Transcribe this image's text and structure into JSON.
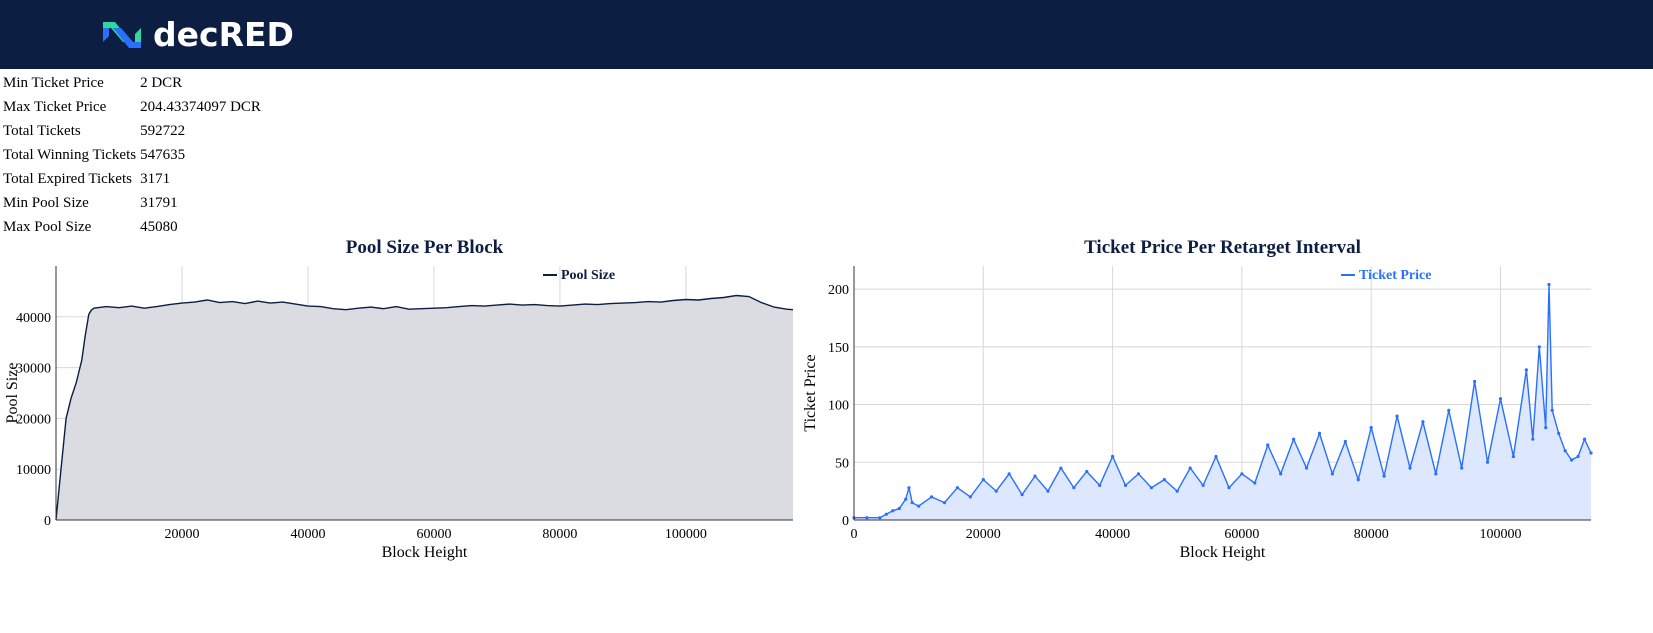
{
  "header": {
    "logo_text": "decRED",
    "colors": {
      "bar": "#0c1e42",
      "logo_blue": "#2970ff",
      "logo_teal": "#2ed6a1"
    }
  },
  "stats": [
    {
      "label": "Min Ticket Price",
      "value": "2 DCR"
    },
    {
      "label": "Max Ticket Price",
      "value": "204.43374097 DCR"
    },
    {
      "label": "Total Tickets",
      "value": "592722"
    },
    {
      "label": "Total Winning Tickets",
      "value": "547635"
    },
    {
      "label": "Total Expired Tickets",
      "value": "3171"
    },
    {
      "label": "Min Pool Size",
      "value": "31791"
    },
    {
      "label": "Max Pool Size",
      "value": "45080"
    }
  ],
  "chart_data": [
    {
      "type": "area",
      "title": "Pool Size Per Block",
      "xlabel": "Block Height",
      "ylabel": "Pool Size",
      "xlim": [
        0,
        117000
      ],
      "ylim": [
        0,
        50000
      ],
      "xticks": [
        20000,
        40000,
        60000,
        80000,
        100000
      ],
      "yticks": [
        0,
        10000,
        20000,
        30000,
        40000
      ],
      "grid": true,
      "legend": "top-right",
      "line_color": "#0c1e42",
      "fill_color": "#dadce2",
      "series": [
        {
          "name": "Pool Size",
          "x": [
            0,
            800,
            1600,
            2400,
            3200,
            4096,
            4600,
            5200,
            5600,
            6000,
            8000,
            10000,
            12000,
            14000,
            16000,
            18000,
            20000,
            22000,
            24000,
            26000,
            28000,
            30000,
            32000,
            34000,
            36000,
            38000,
            40000,
            42000,
            44000,
            46000,
            48000,
            50000,
            52000,
            54000,
            56000,
            58000,
            60000,
            62000,
            64000,
            66000,
            68000,
            70000,
            72000,
            74000,
            76000,
            78000,
            80000,
            82000,
            84000,
            86000,
            88000,
            90000,
            92000,
            94000,
            96000,
            98000,
            100000,
            102000,
            104000,
            106000,
            108000,
            110000,
            112000,
            114000,
            116000,
            117000
          ],
          "values": [
            0,
            10000,
            20000,
            24000,
            27000,
            31500,
            36000,
            40500,
            41300,
            41700,
            42000,
            41800,
            42100,
            41700,
            42000,
            42400,
            42700,
            42900,
            43300,
            42800,
            43000,
            42600,
            43100,
            42700,
            42900,
            42500,
            42100,
            42000,
            41600,
            41400,
            41700,
            41900,
            41600,
            42000,
            41500,
            41600,
            41700,
            41800,
            42000,
            42200,
            42100,
            42300,
            42500,
            42300,
            42400,
            42200,
            42100,
            42300,
            42500,
            42400,
            42600,
            42700,
            42800,
            43000,
            42900,
            43200,
            43400,
            43300,
            43600,
            43800,
            44200,
            44000,
            42800,
            41900,
            41500,
            41400
          ]
        }
      ]
    },
    {
      "type": "area",
      "title": "Ticket Price Per Retarget Interval",
      "xlabel": "Block Height",
      "ylabel": "Ticket Price",
      "xlim": [
        0,
        114000
      ],
      "ylim": [
        0,
        220
      ],
      "xticks": [
        0,
        20000,
        40000,
        60000,
        80000,
        100000
      ],
      "yticks": [
        0,
        50,
        100,
        150,
        200
      ],
      "grid": true,
      "legend": "top-right",
      "line_color": "#2970ff",
      "fill_color": "#dde7fd",
      "series": [
        {
          "name": "Ticket Price",
          "x": [
            0,
            2000,
            4000,
            5000,
            6000,
            7000,
            8000,
            8500,
            9000,
            10000,
            12000,
            14000,
            16000,
            18000,
            20000,
            22000,
            24000,
            26000,
            28000,
            30000,
            32000,
            34000,
            36000,
            38000,
            40000,
            42000,
            44000,
            46000,
            48000,
            50000,
            52000,
            54000,
            56000,
            58000,
            60000,
            62000,
            64000,
            66000,
            68000,
            70000,
            72000,
            74000,
            76000,
            78000,
            80000,
            82000,
            84000,
            86000,
            88000,
            90000,
            92000,
            94000,
            96000,
            98000,
            100000,
            102000,
            104000,
            105000,
            106000,
            107000,
            107500,
            108000,
            109000,
            110000,
            111000,
            112000,
            113000,
            114000
          ],
          "values": [
            2,
            2,
            2,
            5,
            8,
            10,
            18,
            28,
            15,
            12,
            20,
            15,
            28,
            20,
            35,
            25,
            40,
            22,
            38,
            25,
            45,
            28,
            42,
            30,
            55,
            30,
            40,
            28,
            35,
            25,
            45,
            30,
            55,
            28,
            40,
            32,
            65,
            40,
            70,
            45,
            75,
            40,
            68,
            35,
            80,
            38,
            90,
            45,
            85,
            40,
            95,
            45,
            120,
            50,
            105,
            55,
            130,
            70,
            150,
            80,
            204,
            95,
            75,
            60,
            52,
            55,
            70,
            58
          ]
        }
      ]
    }
  ]
}
